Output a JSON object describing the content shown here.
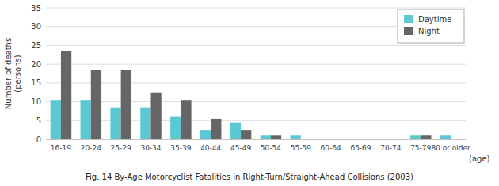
{
  "chart_data": {
    "type": "bar",
    "title": "Fig. 14  By-Age Motorcyclist Fatalities in Right-Turn/Straight-Ahead Collisions  (2003)",
    "ylabel": [
      "Number of deaths",
      "(persons)"
    ],
    "xlabel": "(age)",
    "categories": [
      "16-19",
      "20-24",
      "25-29",
      "30-34",
      "35-39",
      "40-44",
      "45-49",
      "50-54",
      "55-59",
      "60-64",
      "65-69",
      "70-74",
      "75-79",
      "80 or older"
    ],
    "series": [
      {
        "name": "Daytime",
        "color": "#5bc8d4",
        "values": [
          10.5,
          10.5,
          8.5,
          8.5,
          6,
          2.5,
          4.5,
          1,
          1,
          0,
          0,
          0,
          1,
          1
        ]
      },
      {
        "name": "Night",
        "color": "#666666",
        "values": [
          23.5,
          18.5,
          18.5,
          12.5,
          10.5,
          5.5,
          2.5,
          1,
          0,
          0,
          0,
          0,
          1,
          0
        ]
      }
    ],
    "ylim": [
      0,
      35
    ],
    "yticks": [
      0,
      5,
      10,
      15,
      20,
      25,
      30,
      35
    ],
    "grid": true,
    "legend": "upper right"
  }
}
